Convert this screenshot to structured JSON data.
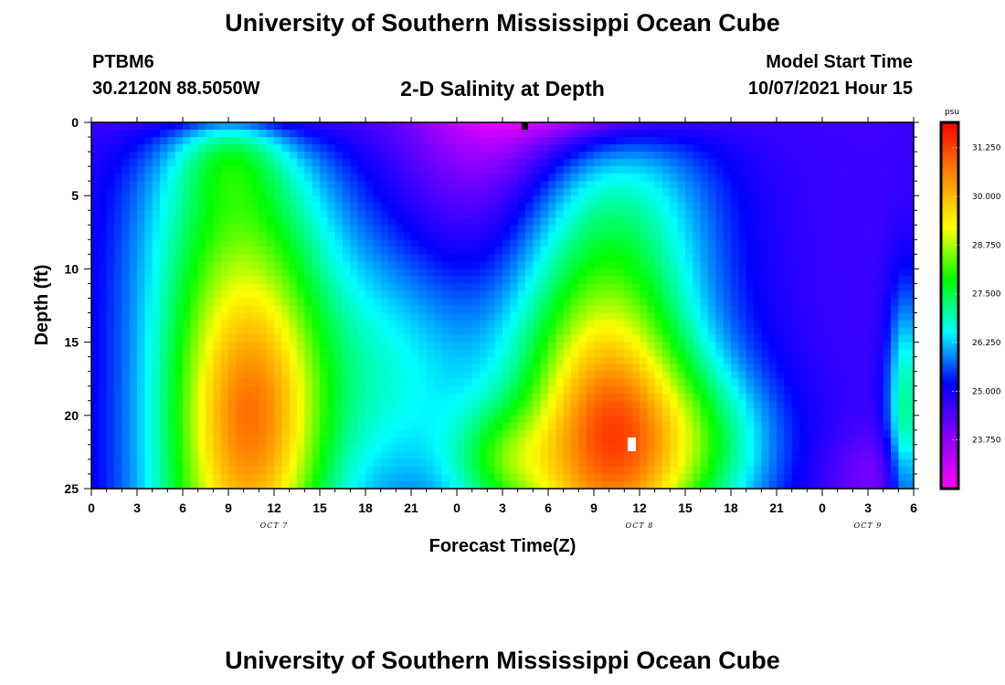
{
  "header": {
    "title": "University of Southern Mississippi Ocean Cube",
    "station_id": "PTBM6",
    "station_coords": "30.2120N  88.5050W",
    "plot_title": "2-D Salinity at Depth",
    "start_label": "Model Start Time",
    "start_value": "10/07/2021 Hour 15"
  },
  "footer": {
    "title": "University of Southern Mississippi Ocean Cube"
  },
  "chart_data": {
    "type": "heatmap",
    "title": "2-D Salinity at Depth",
    "xlabel": "Forecast Time(Z)",
    "ylabel": "Depth (ft)",
    "x_hours": [
      0,
      54
    ],
    "ylim": [
      0,
      25
    ],
    "y_inverted": true,
    "x_ticks": [
      "0",
      "3",
      "6",
      "9",
      "12",
      "15",
      "18",
      "21",
      "0",
      "3",
      "6",
      "9",
      "12",
      "15",
      "18",
      "21",
      "0",
      "3",
      "6"
    ],
    "y_ticks": [
      "0",
      "5",
      "10",
      "15",
      "20",
      "25"
    ],
    "day_labels": [
      {
        "text": "OCT 7",
        "hour": 12
      },
      {
        "text": "OCT 8",
        "hour": 36
      },
      {
        "text": "OCT 9",
        "hour": 51
      }
    ],
    "colorbar": {
      "unit": "psu",
      "vmin": 22.5,
      "vmax": 31.9,
      "ticks": [
        "31.250",
        "30.000",
        "28.750",
        "27.500",
        "26.250",
        "25.000",
        "23.750"
      ],
      "tick_values": [
        31.25,
        30.0,
        28.75,
        27.5,
        26.25,
        25.0,
        23.75
      ],
      "colors": [
        "#ff00ff",
        "#8800ff",
        "#0000ff",
        "#00ffff",
        "#00ff00",
        "#ffff00",
        "#ff8800",
        "#ff0000"
      ]
    },
    "grid": false,
    "legend": "colorbar-right"
  }
}
